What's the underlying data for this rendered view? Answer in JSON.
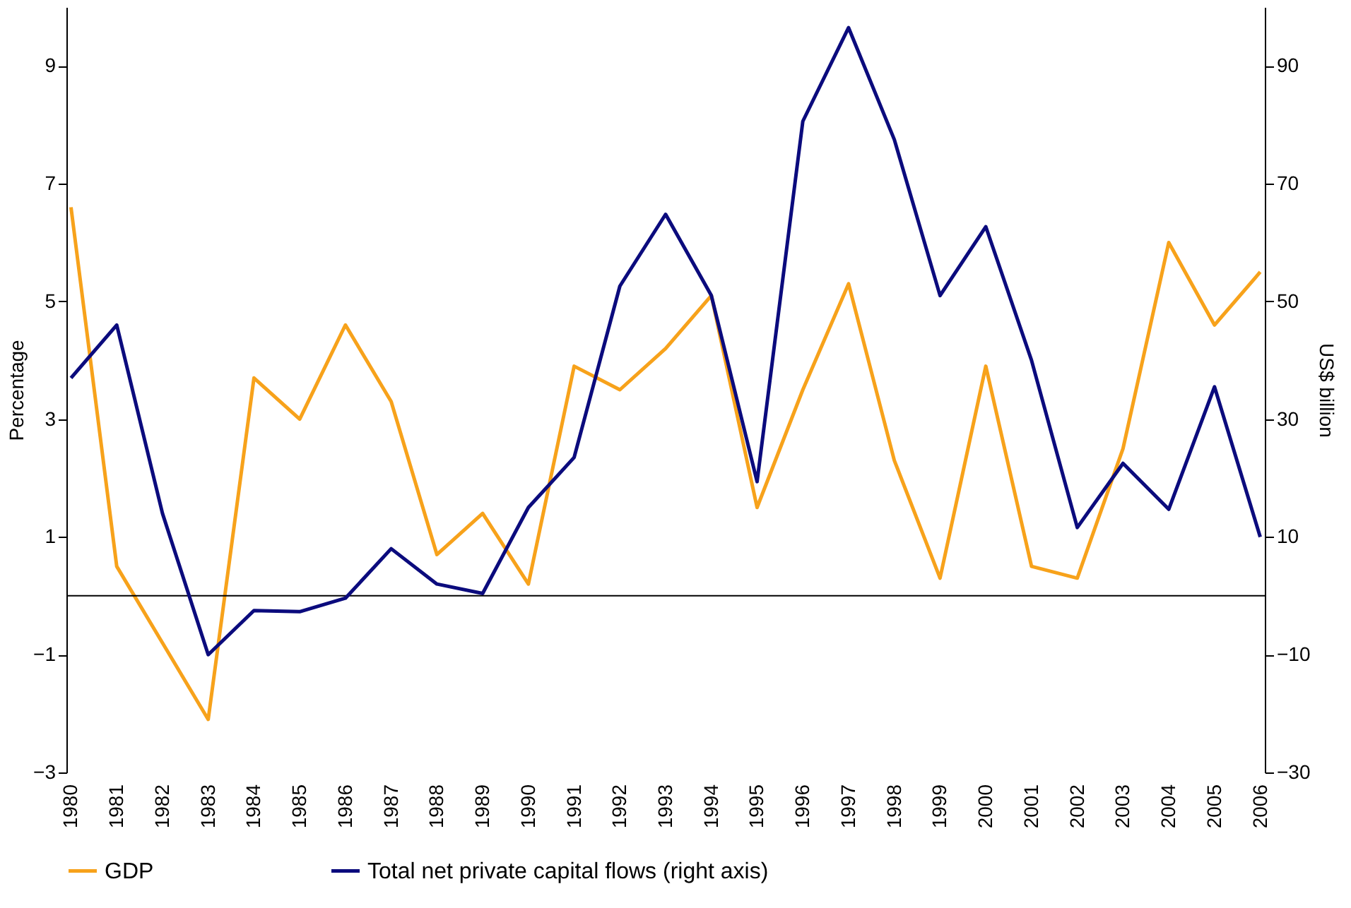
{
  "chart_data": {
    "type": "line",
    "ylabel": "Percentage",
    "y2label": "US$ billion",
    "categories": [
      "1980",
      "1981",
      "1982",
      "1983",
      "1984",
      "1985",
      "1986",
      "1987",
      "1988",
      "1989",
      "1990",
      "1991",
      "1992",
      "1993",
      "1994",
      "1995",
      "1996",
      "1997",
      "1998",
      "1999",
      "2000",
      "2001",
      "2002",
      "2003",
      "2004",
      "2005",
      "2006"
    ],
    "series": [
      {
        "name": "GDP",
        "color": "#f7a21b",
        "values": [
          6.6,
          0.5,
          -0.8,
          -2.1,
          3.7,
          3.0,
          4.6,
          3.3,
          0.7,
          1.4,
          0.2,
          3.9,
          3.5,
          4.2,
          5.1,
          1.5,
          3.5,
          5.3,
          2.3,
          0.3,
          3.9,
          0.5,
          0.3,
          2.5,
          6.0,
          4.6,
          5.5
        ]
      },
      {
        "name": "Total net private capital flows (right axis)",
        "color": "#0b0b7d",
        "axis": "y2",
        "values": [
          37,
          46,
          14,
          -10,
          -2.5,
          -2.7,
          -0.4,
          8,
          2,
          0.4,
          15,
          23.5,
          52.6,
          64.8,
          51,
          19.4,
          80.6,
          96.5,
          77.5,
          51,
          62.7,
          40,
          11.6,
          22.5,
          14.7,
          35.5,
          10
        ]
      }
    ],
    "ylim": [
      -3,
      10
    ],
    "yticks": [
      -3,
      -1,
      1,
      3,
      5,
      7,
      9
    ],
    "y2lim": [
      -30,
      100
    ],
    "y2ticks": [
      -30,
      -10,
      10,
      30,
      50,
      70,
      90
    ],
    "ref_lines": [
      {
        "axis": "y",
        "value": 0,
        "color": "#000000"
      }
    ],
    "grid": false,
    "legend": "bottom"
  }
}
